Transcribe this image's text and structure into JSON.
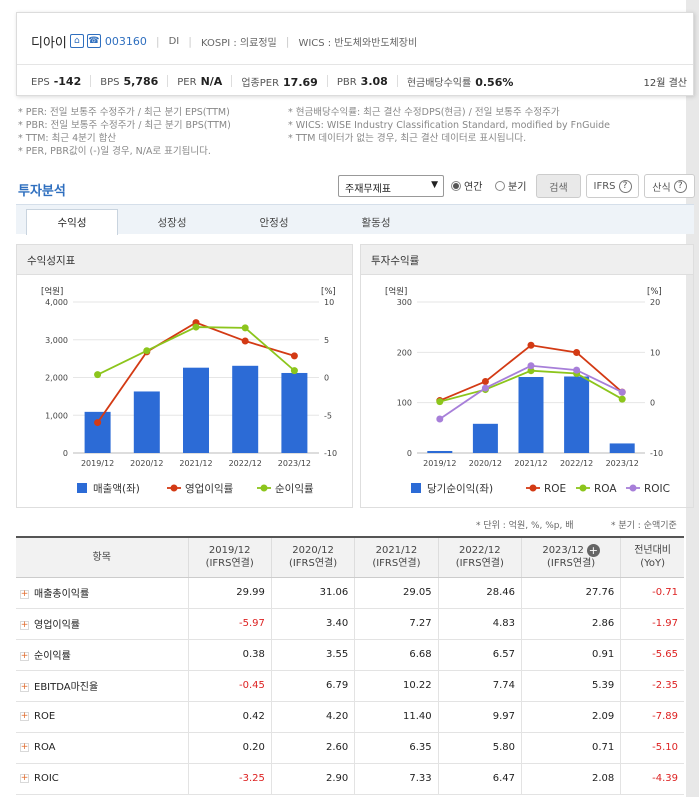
{
  "header": {
    "company": "디아이",
    "home_icon": "home-icon",
    "phone_icon": "ir-icon",
    "code": "003160",
    "market_tag": "DI",
    "kospi_label": "KOSPI : 의료정밀",
    "wics_label": "WICS : 반도체와반도체장비",
    "metrics": [
      {
        "label": "EPS",
        "value": "-142"
      },
      {
        "label": "BPS",
        "value": "5,786"
      },
      {
        "label": "PER",
        "value": "N/A"
      },
      {
        "label": "업종PER",
        "value": "17.69"
      },
      {
        "label": "PBR",
        "value": "3.08"
      },
      {
        "label": "현금배당수익률",
        "value": "0.56%"
      }
    ],
    "settlement": "12월 결산"
  },
  "notes": {
    "left": [
      "* PER: 전일 보통주 수정주가 / 최근 분기 EPS(TTM)",
      "* PBR: 전일 보통주 수정주가 / 최근 분기 BPS(TTM)",
      "* TTM: 최근 4분기 합산",
      "* PER, PBR값이 (-)일 경우, N/A로 표기됩니다."
    ],
    "right": [
      "* 현금배당수익률: 최근 결산 수정DPS(현금) / 전일 보통주 수정주가",
      "* WICS: WISE Industry Classification Standard, modified by FnGuide",
      "* TTM 데이터가 없는 경우, 최근 결산 데이터로 표시됩니다."
    ]
  },
  "section": {
    "title": "투자분석",
    "select_value": "주재무제표",
    "radio_annual": "연간",
    "radio_quarter": "분기",
    "search": "검색",
    "ifrs": "IFRS",
    "formula": "산식"
  },
  "tabs": [
    "수익성",
    "성장성",
    "안정성",
    "활동성"
  ],
  "colors": {
    "bar": "#2c6bd6",
    "red": "#d33a14",
    "green": "#8cc51c",
    "purple": "#a77fd9"
  },
  "chart_data": [
    {
      "type": "bar",
      "title": "수익성지표",
      "ylabel": "[억원]",
      "y2label": "[%]",
      "categories": [
        "2019/12",
        "2020/12",
        "2021/12",
        "2022/12",
        "2023/12"
      ],
      "ylim": [
        0,
        4000
      ],
      "y2lim": [
        -10,
        10
      ],
      "yticks": [
        "4,000",
        "3,000",
        "2,000",
        "1,000",
        "0"
      ],
      "y2ticks": [
        "10",
        "5",
        "0",
        "-5",
        "-10"
      ],
      "series": [
        {
          "name": "매출액(좌)",
          "type": "bar",
          "axis": "left",
          "values": [
            1090,
            1630,
            2260,
            2310,
            2120
          ]
        },
        {
          "name": "영업이익률",
          "type": "line",
          "axis": "right",
          "values": [
            -5.97,
            3.4,
            7.27,
            4.83,
            2.86
          ]
        },
        {
          "name": "순이익률",
          "type": "line",
          "axis": "right",
          "values": [
            0.38,
            3.55,
            6.68,
            6.57,
            0.91
          ]
        }
      ]
    },
    {
      "type": "bar",
      "title": "투자수익률",
      "ylabel": "[억원]",
      "y2label": "[%]",
      "categories": [
        "2019/12",
        "2020/12",
        "2021/12",
        "2022/12",
        "2023/12"
      ],
      "ylim": [
        0,
        300
      ],
      "y2lim": [
        -10,
        20
      ],
      "yticks": [
        "300",
        "200",
        "100",
        "0"
      ],
      "y2ticks": [
        "20",
        "10",
        "0",
        "-10"
      ],
      "series": [
        {
          "name": "당기순이익(좌)",
          "type": "bar",
          "axis": "left",
          "values": [
            4,
            58,
            151,
            152,
            19
          ]
        },
        {
          "name": "ROE",
          "type": "line",
          "axis": "right",
          "values": [
            0.42,
            4.2,
            11.4,
            9.97,
            2.09
          ]
        },
        {
          "name": "ROA",
          "type": "line",
          "axis": "right",
          "values": [
            0.2,
            2.6,
            6.35,
            5.8,
            0.71
          ]
        },
        {
          "name": "ROIC",
          "type": "line",
          "axis": "right",
          "values": [
            -3.25,
            2.9,
            7.33,
            6.47,
            2.08
          ]
        }
      ]
    }
  ],
  "table": {
    "unit": "* 단위 : 억원, %, %p, 배",
    "unit_quarter": "* 분기 : 순액기준",
    "item_header": "항목",
    "columns": [
      {
        "year": "2019/12",
        "basis": "(IFRS연결)"
      },
      {
        "year": "2020/12",
        "basis": "(IFRS연결)"
      },
      {
        "year": "2021/12",
        "basis": "(IFRS연결)"
      },
      {
        "year": "2022/12",
        "basis": "(IFRS연결)"
      },
      {
        "year": "2023/12",
        "basis": "(IFRS연결)"
      },
      {
        "year": "전년대비",
        "basis": "(YoY)"
      }
    ],
    "rows": [
      {
        "label": "매출총이익률",
        "values": [
          "29.99",
          "31.06",
          "29.05",
          "28.46",
          "27.76",
          "-0.71"
        ]
      },
      {
        "label": "영업이익률",
        "values": [
          "-5.97",
          "3.40",
          "7.27",
          "4.83",
          "2.86",
          "-1.97"
        ]
      },
      {
        "label": "순이익률",
        "values": [
          "0.38",
          "3.55",
          "6.68",
          "6.57",
          "0.91",
          "-5.65"
        ]
      },
      {
        "label": "EBITDA마진율",
        "values": [
          "-0.45",
          "6.79",
          "10.22",
          "7.74",
          "5.39",
          "-2.35"
        ]
      },
      {
        "label": "ROE",
        "values": [
          "0.42",
          "4.20",
          "11.40",
          "9.97",
          "2.09",
          "-7.89"
        ]
      },
      {
        "label": "ROA",
        "values": [
          "0.20",
          "2.60",
          "6.35",
          "5.80",
          "0.71",
          "-5.10"
        ]
      },
      {
        "label": "ROIC",
        "values": [
          "-3.25",
          "2.90",
          "7.33",
          "6.47",
          "2.08",
          "-4.39"
        ]
      }
    ]
  }
}
